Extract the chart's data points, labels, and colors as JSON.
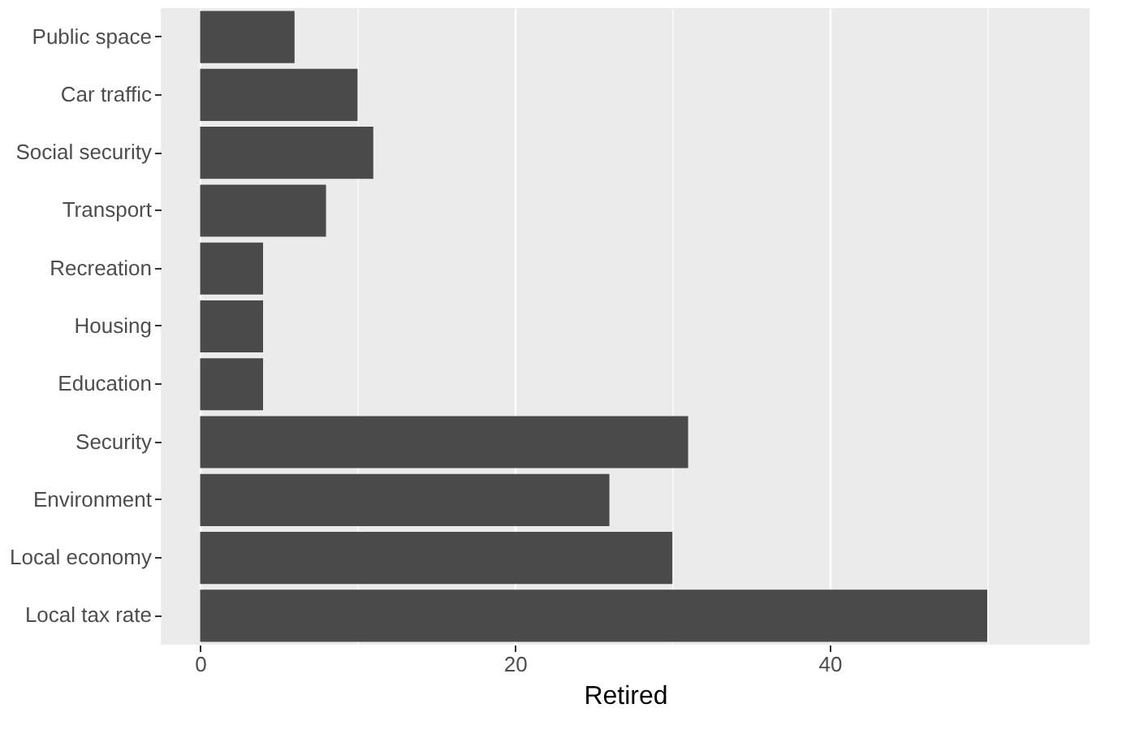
{
  "chart_data": {
    "type": "bar",
    "orientation": "horizontal",
    "xlabel": "Retired",
    "categories": [
      "Public space",
      "Car traffic",
      "Social security",
      "Transport",
      "Recreation",
      "Housing",
      "Education",
      "Security",
      "Environment",
      "Local economy",
      "Local tax rate"
    ],
    "values": [
      6,
      10,
      11,
      8,
      4,
      4,
      4,
      31,
      26,
      30,
      50
    ],
    "color": "#4a4a4a",
    "xlim": [
      -2.5,
      56.5
    ],
    "xticks": [
      0,
      {
        "value": 10,
        "label": null
      },
      20,
      {
        "value": 30,
        "label": null
      },
      40,
      {
        "value": 50,
        "label": null
      }
    ],
    "grid": "x"
  }
}
